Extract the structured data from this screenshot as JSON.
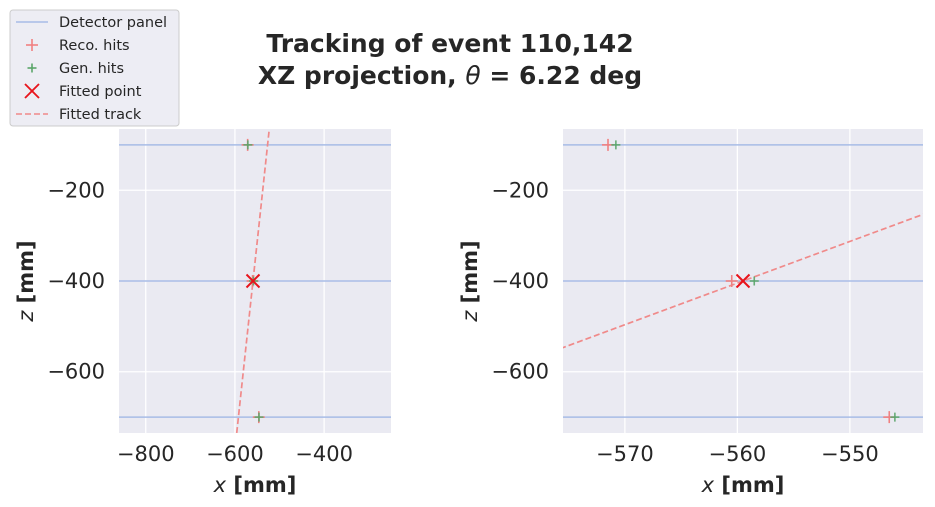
{
  "figure": {
    "title_line1": "Tracking of event 110,142",
    "title_line2_prefix": "XZ projection, ",
    "title_line2_symbol": "θ",
    "title_line2_suffix": " = 6.22 deg"
  },
  "legend": {
    "placement": "upper-left",
    "entries": [
      {
        "label": "Detector panel",
        "marker": "line",
        "color": "#a8bce6"
      },
      {
        "label": "Reco. hits",
        "marker": "plus",
        "color": "#f08080"
      },
      {
        "label": "Gen. hits",
        "marker": "plus-small",
        "color": "#5aa569"
      },
      {
        "label": "Fitted point",
        "marker": "x",
        "color": "#e8141c"
      },
      {
        "label": "Fitted track",
        "marker": "dashed-line",
        "color": "#f08a8a"
      }
    ]
  },
  "chart_data": [
    {
      "type": "scatter",
      "xlabel_var": "x",
      "xlabel_unit": " [mm]",
      "ylabel_var": "z",
      "ylabel_unit": " [mm]",
      "xlim": [
        -860,
        -250
      ],
      "ylim": [
        -735,
        -65
      ],
      "xticks": [
        -800,
        -600,
        -400
      ],
      "xtick_labels": [
        "−800",
        "−600",
        "−400"
      ],
      "yticks": [
        -200,
        -400,
        -600
      ],
      "ytick_labels": [
        "−200",
        "−400",
        "−600"
      ],
      "grid": true,
      "detector_panels_z": [
        -100,
        -400,
        -700
      ],
      "reco_hits": [
        {
          "x": -571.5,
          "z": -100
        },
        {
          "x": -560.5,
          "z": -400
        },
        {
          "x": -546.5,
          "z": -700
        }
      ],
      "gen_hits": [
        {
          "x": -571,
          "z": -100
        },
        {
          "x": -558.5,
          "z": -400
        },
        {
          "x": -546,
          "z": -700
        }
      ],
      "fitted_points": [
        {
          "x": -559.5,
          "z": -400
        }
      ],
      "fitted_track": {
        "x0": -559.5,
        "z0": -400,
        "theta_deg": 6.22
      }
    },
    {
      "type": "scatter",
      "xlabel_var": "x",
      "xlabel_unit": " [mm]",
      "ylabel_var": "z",
      "ylabel_unit": " [mm]",
      "xlim": [
        -575.5,
        -543.5
      ],
      "ylim": [
        -735,
        -65
      ],
      "xticks": [
        -570,
        -560,
        -550
      ],
      "xtick_labels": [
        "−570",
        "−560",
        "−550"
      ],
      "yticks": [
        -200,
        -400,
        -600
      ],
      "ytick_labels": [
        "−200",
        "−400",
        "−600"
      ],
      "grid": true,
      "detector_panels_z": [
        -100,
        -400,
        -700
      ],
      "reco_hits": [
        {
          "x": -571.5,
          "z": -100
        },
        {
          "x": -560.5,
          "z": -400
        },
        {
          "x": -546.5,
          "z": -700
        }
      ],
      "gen_hits": [
        {
          "x": -570.8,
          "z": -100
        },
        {
          "x": -558.5,
          "z": -400
        },
        {
          "x": -546,
          "z": -700
        }
      ],
      "fitted_points": [
        {
          "x": -559.5,
          "z": -400
        }
      ],
      "fitted_track": {
        "x0": -559.5,
        "z0": -400,
        "theta_deg": 6.22
      }
    }
  ]
}
